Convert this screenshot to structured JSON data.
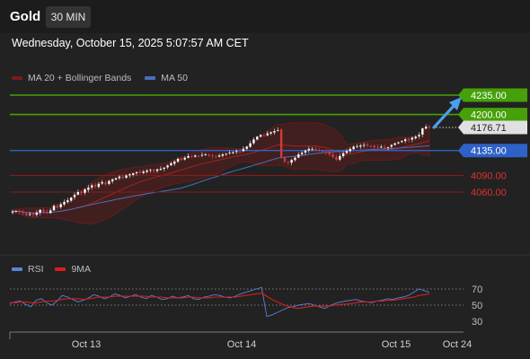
{
  "header": {
    "symbol": "Gold",
    "timeframe": "30 MIN"
  },
  "timestamp": "Wednesday, October 15, 2025 5:07:57 AM CET",
  "colors": {
    "background": "#222222",
    "bullish_candle": "#ffffff",
    "bearish_candle": "#d23b3b",
    "resistance_green": "#46a00a",
    "support_blue": "#2f62c8",
    "support_red": "#8b1a1a",
    "ma20_bollinger": "#7a1a1a",
    "ma50": "#4a6fb8",
    "rsi": "#5a82d8",
    "rsi_ma": "#d81e1e",
    "arrow": "#4a9ef0"
  },
  "legend": {
    "ma20_label": "MA 20 + Bollinger Bands",
    "ma50_label": "MA 50",
    "rsi_label": "RSI",
    "rsi_ma_label": "9MA"
  },
  "chart_data": [
    {
      "type": "candlestick",
      "title": "",
      "x_ticks": [
        "Oct 13",
        "Oct 14",
        "Oct 15",
        "Oct 24"
      ],
      "ylim": [
        4000,
        4260
      ],
      "price_levels": [
        {
          "value": 4235.0,
          "label": "4235.00",
          "style": "green",
          "drawn": "line"
        },
        {
          "value": 4200.0,
          "label": "4200.00",
          "style": "green",
          "drawn": "line"
        },
        {
          "value": 4176.71,
          "label": "4176.71",
          "style": "current",
          "drawn": "dotted"
        },
        {
          "value": 4135.0,
          "label": "4135.00",
          "style": "blue",
          "drawn": "line"
        },
        {
          "value": 4090.0,
          "label": "4090.00",
          "style": "red",
          "drawn": "line"
        },
        {
          "value": 4060.0,
          "label": "4060.00",
          "style": "red",
          "drawn": "line"
        }
      ],
      "close_series": [
        4025,
        4026,
        4024,
        4022,
        4018,
        4020,
        4019,
        4023,
        4028,
        4025,
        4022,
        4027,
        4035,
        4032,
        4038,
        4042,
        4045,
        4050,
        4055,
        4060,
        4058,
        4065,
        4068,
        4072,
        4070,
        4075,
        4078,
        4074,
        4080,
        4083,
        4085,
        4088,
        4086,
        4090,
        4092,
        4094,
        4096,
        4095,
        4097,
        4099,
        4100,
        4098,
        4101,
        4102,
        4104,
        4108,
        4112,
        4115,
        4120,
        4118,
        4122,
        4125,
        4124,
        4126,
        4125,
        4127,
        4128,
        4126,
        4125,
        4124,
        4126,
        4128,
        4129,
        4131,
        4132,
        4134,
        4133,
        4138,
        4142,
        4148,
        4155,
        4160,
        4163,
        4162,
        4166,
        4168,
        4170,
        4172,
        4122,
        4115,
        4113,
        4118,
        4122,
        4128,
        4131,
        4135,
        4138,
        4138,
        4136,
        4135,
        4133,
        4131,
        4128,
        4123,
        4118,
        4125,
        4130,
        4134,
        4138,
        4142,
        4143,
        4144,
        4145,
        4144,
        4143,
        4141,
        4140,
        4142,
        4140,
        4141,
        4145,
        4148,
        4150,
        4152,
        4155,
        4154,
        4158,
        4160,
        4163,
        4175,
        4178,
        4177
      ]
    },
    {
      "type": "line",
      "title": "",
      "y_ticks": [
        "70",
        "50",
        "30"
      ],
      "ylim": [
        20,
        80
      ],
      "series": [
        {
          "name": "RSI",
          "values": [
            52,
            54,
            55,
            51,
            48,
            56,
            58,
            53,
            50,
            55,
            62,
            60,
            57,
            54,
            56,
            59,
            63,
            61,
            58,
            60,
            64,
            62,
            59,
            61,
            63,
            60,
            58,
            62,
            60,
            57,
            58,
            61,
            59,
            60,
            62,
            58,
            57,
            60,
            61,
            63,
            62,
            60,
            59,
            61,
            64,
            66,
            68,
            70,
            72,
            36,
            38,
            41,
            44,
            47,
            48,
            50,
            51,
            52,
            50,
            48,
            46,
            49,
            52,
            54,
            55,
            56,
            57,
            55,
            54,
            53,
            55,
            56,
            58,
            57,
            59,
            60,
            62,
            66,
            70,
            68,
            66
          ]
        },
        {
          "name": "9MA",
          "values": [
            53,
            53,
            54,
            54,
            53,
            53,
            54,
            55,
            55,
            56,
            57,
            58,
            58,
            58,
            57,
            58,
            59,
            60,
            60,
            60,
            61,
            61,
            61,
            61,
            61,
            61,
            61,
            60,
            60,
            60,
            59,
            59,
            59,
            59,
            60,
            60,
            59,
            59,
            59,
            60,
            60,
            60,
            60,
            60,
            61,
            62,
            63,
            64,
            65,
            61,
            57,
            54,
            51,
            49,
            47,
            46,
            47,
            48,
            49,
            49,
            49,
            49,
            50,
            51,
            51,
            52,
            53,
            54,
            54,
            54,
            55,
            55,
            56,
            56,
            57,
            58,
            59,
            60,
            62,
            63,
            64
          ]
        }
      ]
    }
  ]
}
